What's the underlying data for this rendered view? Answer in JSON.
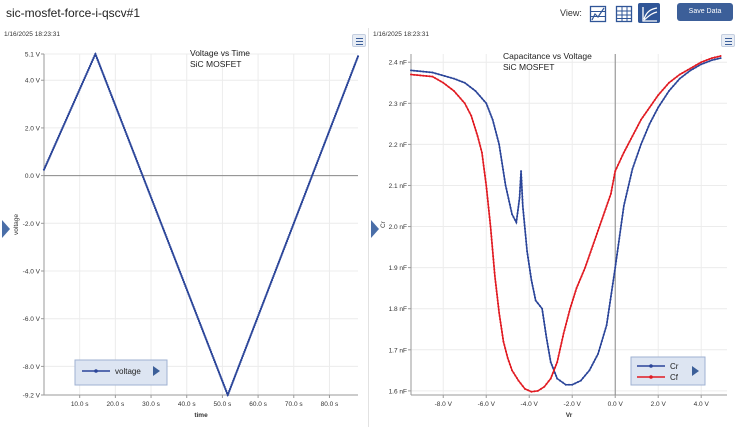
{
  "window": {
    "title": "sic-mosfet-force-i-qscv#1"
  },
  "toolbar": {
    "view_label": "View:",
    "save_label": "Save Data",
    "view_buttons": [
      "split-view-icon",
      "table-view-icon",
      "graph-view-icon"
    ],
    "active_view": "graph-view-icon",
    "accent": "#2f5597"
  },
  "panels": {
    "left": {
      "timestamp": "1/16/2025 18:23:31",
      "legend": {
        "label": "voltage"
      }
    },
    "right": {
      "timestamp": "1/16/2025 18:23:31",
      "legend": {
        "labels": [
          "Cr",
          "Cf"
        ]
      }
    }
  },
  "chart_data": [
    {
      "type": "line",
      "title": "Voltage vs Time",
      "subtitle": "SiC MOSFET",
      "xlabel": "time",
      "ylabel": "voltage",
      "xlim": [
        0,
        88
      ],
      "ylim": [
        -9.2,
        5.1
      ],
      "x_ticks": [
        10,
        20,
        30,
        40,
        50,
        60,
        70,
        80
      ],
      "x_tick_labels": [
        "10.0 s",
        "20.0 s",
        "30.0 s",
        "40.0 s",
        "50.0 s",
        "60.0 s",
        "70.0 s",
        "80.0 s"
      ],
      "y_ticks": [
        5.1,
        4,
        2,
        0,
        -2,
        -4,
        -6,
        -8,
        -9.2
      ],
      "y_tick_labels": [
        "5.1 V",
        "4.0 V",
        "2.0 V",
        "0.0 V",
        "-2.0 V",
        "-4.0 V",
        "-6.0 V",
        "-8.0 V",
        "-9.2 V"
      ],
      "grid": true,
      "legend_position": "bottom-left",
      "series": [
        {
          "name": "voltage",
          "color": "#2b4599",
          "points": [
            [
              0,
              0.25
            ],
            [
              14.4,
              5.1
            ],
            [
              51.5,
              -9.2
            ],
            [
              88,
              5.0
            ]
          ]
        }
      ]
    },
    {
      "type": "line",
      "title": "Capacitance vs Voltage",
      "subtitle": "SiC MOSFET",
      "xlabel": "Vr",
      "ylabel": "Cr",
      "xlim": [
        -9.5,
        5.2
      ],
      "ylim": [
        1.59,
        2.42
      ],
      "x_ticks": [
        -8,
        -6,
        -4,
        -2,
        0,
        2,
        4
      ],
      "x_tick_labels": [
        "-8.0 V",
        "-6.0 V",
        "-4.0 V",
        "-2.0 V",
        "0.0 V",
        "2.0 V",
        "4.0 V"
      ],
      "y_ticks": [
        2.4,
        2.3,
        2.2,
        2.1,
        2.0,
        1.9,
        1.8,
        1.7,
        1.6
      ],
      "y_tick_labels": [
        "2.4 nF",
        "2.3 nF",
        "2.2 nF",
        "2.1 nF",
        "2.0 nF",
        "1.9 nF",
        "1.8 nF",
        "1.7 nF",
        "1.6 nF"
      ],
      "grid": true,
      "legend_position": "bottom-right",
      "series": [
        {
          "name": "Cr",
          "color": "#2b4599",
          "points": [
            [
              -9.5,
              2.38
            ],
            [
              -8.5,
              2.375
            ],
            [
              -7.5,
              2.36
            ],
            [
              -7.0,
              2.35
            ],
            [
              -6.5,
              2.33
            ],
            [
              -6.0,
              2.3
            ],
            [
              -5.7,
              2.26
            ],
            [
              -5.4,
              2.2
            ],
            [
              -5.1,
              2.1
            ],
            [
              -4.8,
              2.03
            ],
            [
              -4.6,
              2.01
            ],
            [
              -4.45,
              2.07
            ],
            [
              -4.38,
              2.135
            ],
            [
              -4.3,
              2.05
            ],
            [
              -4.1,
              1.94
            ],
            [
              -3.9,
              1.87
            ],
            [
              -3.7,
              1.82
            ],
            [
              -3.4,
              1.8
            ],
            [
              -3.2,
              1.73
            ],
            [
              -3.0,
              1.67
            ],
            [
              -2.7,
              1.63
            ],
            [
              -2.3,
              1.615
            ],
            [
              -2.0,
              1.615
            ],
            [
              -1.6,
              1.625
            ],
            [
              -1.2,
              1.65
            ],
            [
              -0.8,
              1.69
            ],
            [
              -0.4,
              1.76
            ],
            [
              0.0,
              1.9
            ],
            [
              0.4,
              2.05
            ],
            [
              0.8,
              2.14
            ],
            [
              1.2,
              2.2
            ],
            [
              1.6,
              2.25
            ],
            [
              2.0,
              2.29
            ],
            [
              2.5,
              2.33
            ],
            [
              3.0,
              2.36
            ],
            [
              3.5,
              2.38
            ],
            [
              4.0,
              2.395
            ],
            [
              4.5,
              2.405
            ],
            [
              4.9,
              2.41
            ]
          ]
        },
        {
          "name": "Cf",
          "color": "#e11b22",
          "points": [
            [
              -9.5,
              2.37
            ],
            [
              -8.5,
              2.365
            ],
            [
              -8.0,
              2.35
            ],
            [
              -7.5,
              2.33
            ],
            [
              -7.0,
              2.3
            ],
            [
              -6.7,
              2.27
            ],
            [
              -6.4,
              2.22
            ],
            [
              -6.2,
              2.18
            ],
            [
              -6.0,
              2.1
            ],
            [
              -5.8,
              2.0
            ],
            [
              -5.6,
              1.88
            ],
            [
              -5.4,
              1.79
            ],
            [
              -5.2,
              1.72
            ],
            [
              -5.0,
              1.68
            ],
            [
              -4.8,
              1.65
            ],
            [
              -4.5,
              1.625
            ],
            [
              -4.2,
              1.605
            ],
            [
              -3.9,
              1.598
            ],
            [
              -3.6,
              1.6
            ],
            [
              -3.3,
              1.61
            ],
            [
              -3.0,
              1.63
            ],
            [
              -2.7,
              1.67
            ],
            [
              -2.4,
              1.74
            ],
            [
              -2.1,
              1.8
            ],
            [
              -1.8,
              1.85
            ],
            [
              -1.4,
              1.9
            ],
            [
              -1.0,
              1.96
            ],
            [
              -0.6,
              2.02
            ],
            [
              -0.2,
              2.08
            ],
            [
              0.0,
              2.135
            ],
            [
              0.4,
              2.18
            ],
            [
              0.8,
              2.22
            ],
            [
              1.2,
              2.26
            ],
            [
              1.6,
              2.29
            ],
            [
              2.0,
              2.32
            ],
            [
              2.5,
              2.35
            ],
            [
              3.0,
              2.37
            ],
            [
              3.5,
              2.385
            ],
            [
              4.0,
              2.4
            ],
            [
              4.5,
              2.41
            ],
            [
              4.9,
              2.415
            ]
          ]
        }
      ]
    }
  ]
}
